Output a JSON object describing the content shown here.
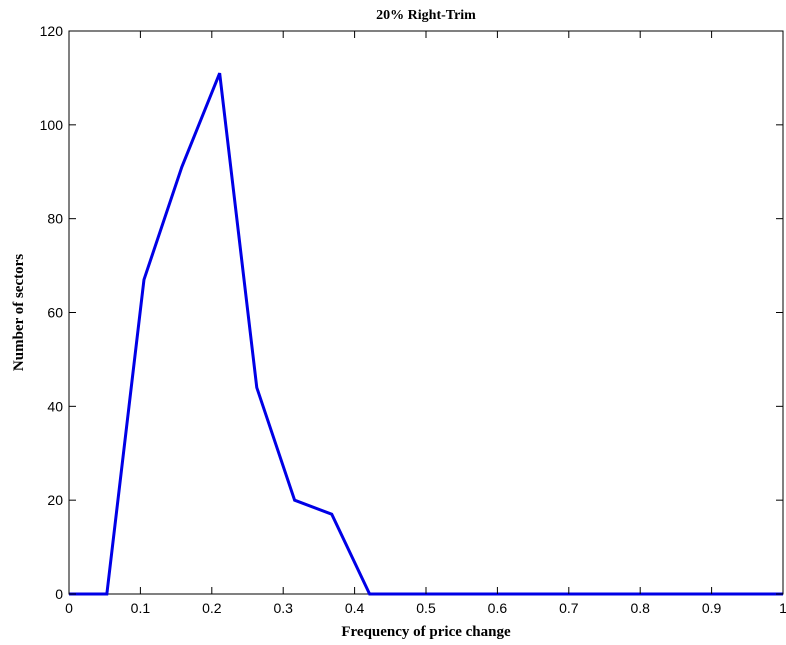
{
  "chart_data": {
    "type": "line",
    "title": "20% Right-Trim",
    "xlabel": "Frequency of price change",
    "ylabel": "Number of sectors",
    "xlim": [
      0,
      1
    ],
    "ylim": [
      0,
      120
    ],
    "xticks": [
      0,
      0.1,
      0.2,
      0.3,
      0.4,
      0.5,
      0.6,
      0.7,
      0.8,
      0.9,
      1
    ],
    "xtick_labels": [
      "0",
      "0.1",
      "0.2",
      "0.3",
      "0.4",
      "0.5",
      "0.6",
      "0.7",
      "0.8",
      "0.9",
      "1"
    ],
    "yticks": [
      0,
      20,
      40,
      60,
      80,
      100,
      120
    ],
    "ytick_labels": [
      "0",
      "20",
      "40",
      "60",
      "80",
      "100",
      "120"
    ],
    "grid": false,
    "series": [
      {
        "color": "#0000e6",
        "x": [
          0,
          0.053,
          0.105,
          0.158,
          0.211,
          0.263,
          0.316,
          0.368,
          0.421,
          0.474,
          0.526,
          0.579,
          0.632,
          0.684,
          0.737,
          0.789,
          0.842,
          0.895,
          0.947,
          1
        ],
        "y": [
          0,
          0,
          67,
          91,
          111,
          44,
          20,
          17,
          0,
          0,
          0,
          0,
          0,
          0,
          0,
          0,
          0,
          0,
          0,
          0
        ]
      }
    ]
  }
}
